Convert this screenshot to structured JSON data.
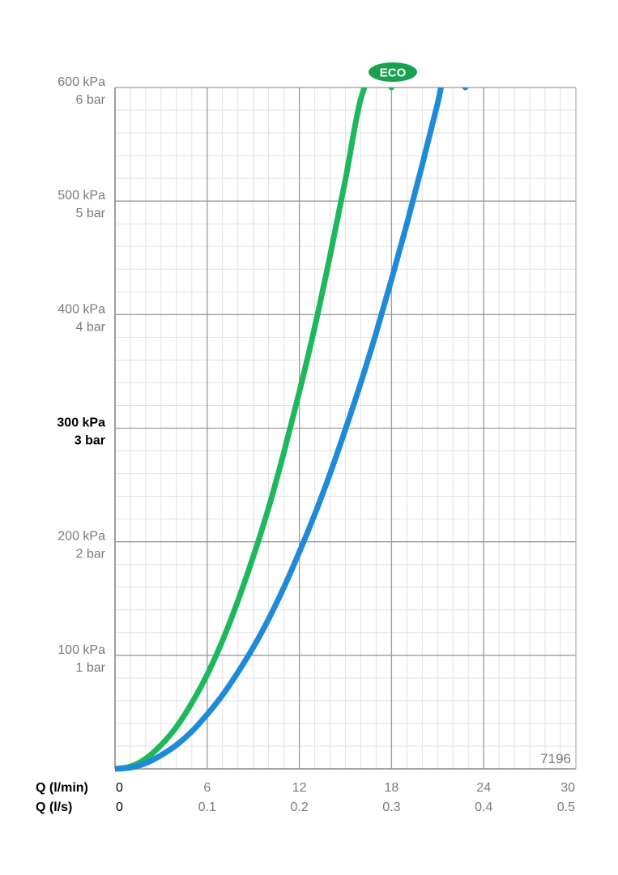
{
  "chart_data": {
    "type": "line",
    "x_axis_primary": {
      "name": "Q (l/min)",
      "ticks": [
        0,
        6,
        12,
        18,
        24,
        30
      ],
      "tick_labels": [
        "0",
        "6",
        "12",
        "18",
        "24",
        "30"
      ],
      "range": [
        0,
        30
      ]
    },
    "x_axis_secondary": {
      "name": "Q (l/s)",
      "tick_labels": [
        "0",
        "0.1",
        "0.2",
        "0.3",
        "0.4",
        "0.5"
      ]
    },
    "y_axis": {
      "range": [
        0,
        600
      ],
      "ticks": [
        {
          "value": 100,
          "kpa": "100 kPa",
          "bar": "1 bar",
          "bold": false
        },
        {
          "value": 200,
          "kpa": "200 kPa",
          "bar": "2 bar",
          "bold": false
        },
        {
          "value": 300,
          "kpa": "300 kPa",
          "bar": "3 bar",
          "bold": true
        },
        {
          "value": 400,
          "kpa": "400 kPa",
          "bar": "4 bar",
          "bold": false
        },
        {
          "value": 500,
          "kpa": "500 kPa",
          "bar": "5 bar",
          "bold": false
        },
        {
          "value": 600,
          "kpa": "600 kPa",
          "bar": "6 bar",
          "bold": false
        }
      ]
    },
    "grid": true,
    "series": [
      {
        "name": "ECO",
        "color": "#1db85c",
        "x": [
          0,
          1,
          2,
          3,
          4,
          5,
          6,
          7,
          8,
          9,
          10,
          11,
          12,
          13,
          14,
          15,
          16,
          17,
          18
        ],
        "y": [
          0,
          2,
          9,
          21,
          37,
          58,
          83,
          113,
          148,
          187,
          230,
          279,
          332,
          389,
          452,
          519,
          590,
          615,
          600
        ]
      },
      {
        "name": "",
        "color": "#1e8ad8",
        "x": [
          0,
          1,
          2,
          3,
          4,
          5,
          6,
          7,
          8,
          9,
          10,
          11,
          12,
          13,
          14,
          15,
          16,
          17,
          18,
          19,
          20,
          21,
          22,
          22.8
        ],
        "y": [
          0,
          1,
          5,
          12,
          21,
          33,
          48,
          65,
          85,
          107,
          132,
          160,
          191,
          224,
          260,
          299,
          340,
          384,
          431,
          480,
          532,
          586,
          643,
          600
        ]
      }
    ],
    "badge": "ECO",
    "code": "7196"
  }
}
